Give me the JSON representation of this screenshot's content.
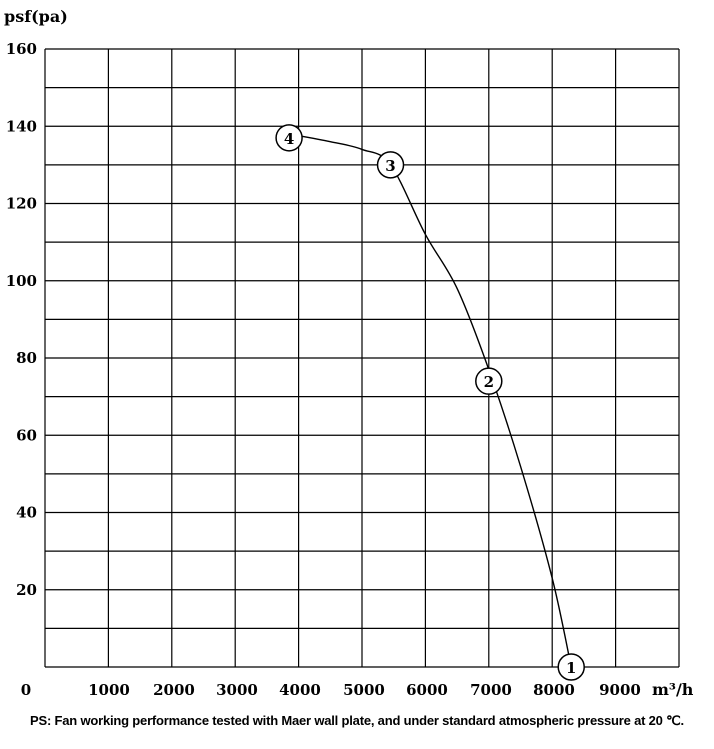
{
  "chart_data": {
    "type": "line",
    "ylabel": "psf(pa)",
    "xlabel": "m³/h",
    "xlim": [
      0,
      10000
    ],
    "ylim": [
      0,
      160
    ],
    "x_ticks": [
      0,
      1000,
      2000,
      3000,
      4000,
      5000,
      6000,
      7000,
      8000,
      9000
    ],
    "x_tick_labels": [
      "0",
      "1000",
      "2000",
      "3000",
      "4000",
      "5000",
      "6000",
      "7000",
      "8000",
      "9000"
    ],
    "y_ticks": [
      20,
      40,
      60,
      80,
      100,
      120,
      140,
      160
    ],
    "y_tick_labels": [
      "20",
      "40",
      "60",
      "80",
      "100",
      "120",
      "140",
      "160"
    ],
    "grid": true,
    "series": [
      {
        "x": [
          3850,
          4500,
          5000,
          5450,
          6000,
          6500,
          7000,
          7500,
          8000,
          8300
        ],
        "y": [
          138,
          136,
          134,
          130,
          112,
          98,
          77,
          52,
          23,
          0
        ]
      }
    ],
    "markers": [
      {
        "label": "1",
        "x": 8300,
        "y": 0
      },
      {
        "label": "2",
        "x": 7000,
        "y": 74
      },
      {
        "label": "3",
        "x": 5450,
        "y": 130
      },
      {
        "label": "4",
        "x": 3850,
        "y": 137
      }
    ]
  },
  "footnote": "PS: Fan working performance tested with Maer wall plate, and under standard atmospheric pressure at 20 ℃."
}
